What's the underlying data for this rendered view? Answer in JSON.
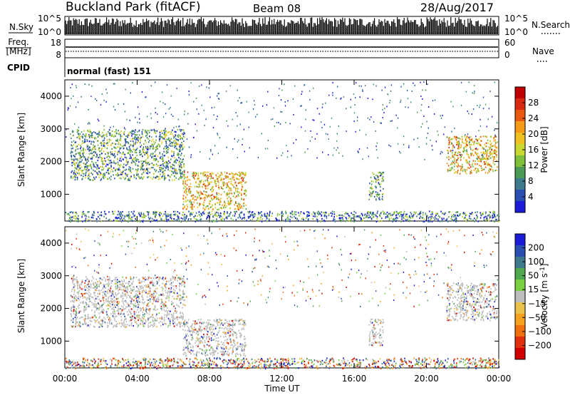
{
  "header": {
    "title": "Buckland Park (fitACF)",
    "beam": "Beam 08",
    "date": "28/Aug/2017"
  },
  "side_labels": {
    "nsky": "N.Sky",
    "freq_line1": "Freq.",
    "freq_line2": "[MHz]",
    "cpid": "CPID",
    "nsearch": "N.Search",
    "nave": "Nave"
  },
  "strip_ticks": {
    "nsky_left": [
      "10^5",
      "10^0"
    ],
    "nsky_right": [
      "10^5",
      "10^0"
    ],
    "freq_left": [
      "18",
      "8"
    ],
    "nave_right": [
      "60",
      "0"
    ]
  },
  "cpid_text": "normal (fast) 151",
  "colors": {
    "power": [
      "#1c1cd8",
      "#2a4fb0",
      "#3c7a8c",
      "#4b9a55",
      "#7fbf3a",
      "#c8d830",
      "#f0c020",
      "#f59a18",
      "#e85a10",
      "#d82a10",
      "#c00000"
    ],
    "velocity": [
      "#1c1cd8",
      "#2a4fb0",
      "#3c7a8c",
      "#4fa84f",
      "#7ad040",
      "#bdbdbd",
      "#e8c24a",
      "#f5a020",
      "#f07010",
      "#e03010",
      "#d00000"
    ],
    "grey": "#bdbdbd"
  },
  "chart_data": [
    {
      "type": "heatmap",
      "name": "power",
      "xlabel": "",
      "ylabel": "Slant Range [km]",
      "xlim": [
        0,
        24
      ],
      "ylim": [
        180,
        4500
      ],
      "x_ticks": [
        "00:00",
        "04:00",
        "08:00",
        "12:00",
        "16:00",
        "20:00",
        "00:00"
      ],
      "y_ticks": [
        1000,
        2000,
        3000,
        4000
      ],
      "colorbar": {
        "label": "Power [dB]",
        "ticks": [
          4,
          8,
          12,
          16,
          20,
          24,
          28
        ],
        "range": [
          0,
          30
        ]
      },
      "regions": [
        {
          "x": [
            0.3,
            6.6
          ],
          "y": [
            1450,
            3000
          ],
          "level": "mid"
        },
        {
          "x": [
            6.5,
            10.0
          ],
          "y": [
            550,
            1700
          ],
          "level": "high"
        },
        {
          "x": [
            0.0,
            24.0
          ],
          "y": [
            180,
            500
          ],
          "level": "mixed"
        },
        {
          "x": [
            16.8,
            17.6
          ],
          "y": [
            850,
            1700
          ],
          "level": "mid"
        },
        {
          "x": [
            21.1,
            23.9
          ],
          "y": [
            1650,
            2800
          ],
          "level": "high"
        }
      ]
    },
    {
      "type": "heatmap",
      "name": "velocity",
      "xlabel": "Time UT",
      "ylabel": "Slant Range [km]",
      "xlim": [
        0,
        24
      ],
      "ylim": [
        180,
        4500
      ],
      "x_ticks": [
        "00:00",
        "04:00",
        "08:00",
        "12:00",
        "16:00",
        "20:00",
        "00:00"
      ],
      "y_ticks": [
        1000,
        2000,
        3000,
        4000
      ],
      "colorbar": {
        "label": "Velocity [m s^-1]",
        "ticks": [
          "200",
          "100",
          "50",
          "15",
          "-15",
          "-50",
          "-100",
          "-200"
        ],
        "range": [
          -250,
          250
        ]
      },
      "regions": [
        {
          "x": [
            0.3,
            6.6
          ],
          "y": [
            1450,
            3000
          ],
          "level": "ground"
        },
        {
          "x": [
            6.5,
            10.0
          ],
          "y": [
            550,
            1700
          ],
          "level": "ground"
        },
        {
          "x": [
            0.0,
            24.0
          ],
          "y": [
            180,
            500
          ],
          "level": "mixed"
        },
        {
          "x": [
            16.8,
            17.6
          ],
          "y": [
            850,
            1700
          ],
          "level": "ground"
        },
        {
          "x": [
            21.1,
            23.9
          ],
          "y": [
            1650,
            2800
          ],
          "level": "ground"
        }
      ]
    }
  ]
}
